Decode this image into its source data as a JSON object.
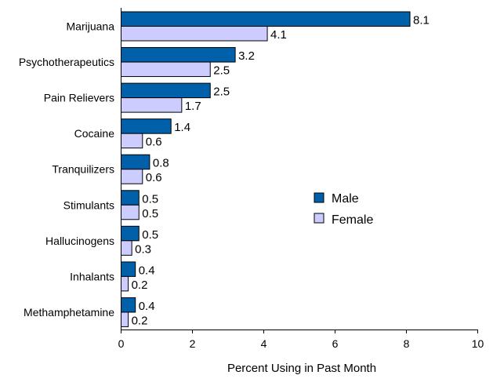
{
  "chart_data": {
    "type": "bar",
    "orientation": "horizontal",
    "categories": [
      "Marijuana",
      "Psychotherapeutics",
      "Pain Relievers",
      "Cocaine",
      "Tranquilizers",
      "Stimulants",
      "Hallucinogens",
      "Inhalants",
      "Methamphetamine"
    ],
    "series": [
      {
        "name": "Male",
        "color": "#0060AA",
        "values": [
          8.1,
          3.2,
          2.5,
          1.4,
          0.8,
          0.5,
          0.5,
          0.4,
          0.4
        ]
      },
      {
        "name": "Female",
        "color": "#CCCCFF",
        "values": [
          4.1,
          2.5,
          1.7,
          0.6,
          0.6,
          0.5,
          0.3,
          0.2,
          0.2
        ]
      }
    ],
    "data_labels": {
      "Male": [
        "8.1",
        "3.2",
        "2.5",
        "1.4",
        "0.8",
        "0.5",
        "0.5",
        "0.4",
        "0.4"
      ],
      "Female": [
        "4.1",
        "2.5",
        "1.7",
        "0.6",
        "0.6",
        "0.5",
        "0.3",
        "0.2",
        "0.2"
      ]
    },
    "xlabel": "Percent Using in Past Month",
    "ylabel": "",
    "title": "",
    "xlim": [
      0,
      10
    ],
    "xticks": [
      "0",
      "2",
      "4",
      "6",
      "8",
      "10"
    ],
    "grid": false,
    "legend_position": "right"
  }
}
